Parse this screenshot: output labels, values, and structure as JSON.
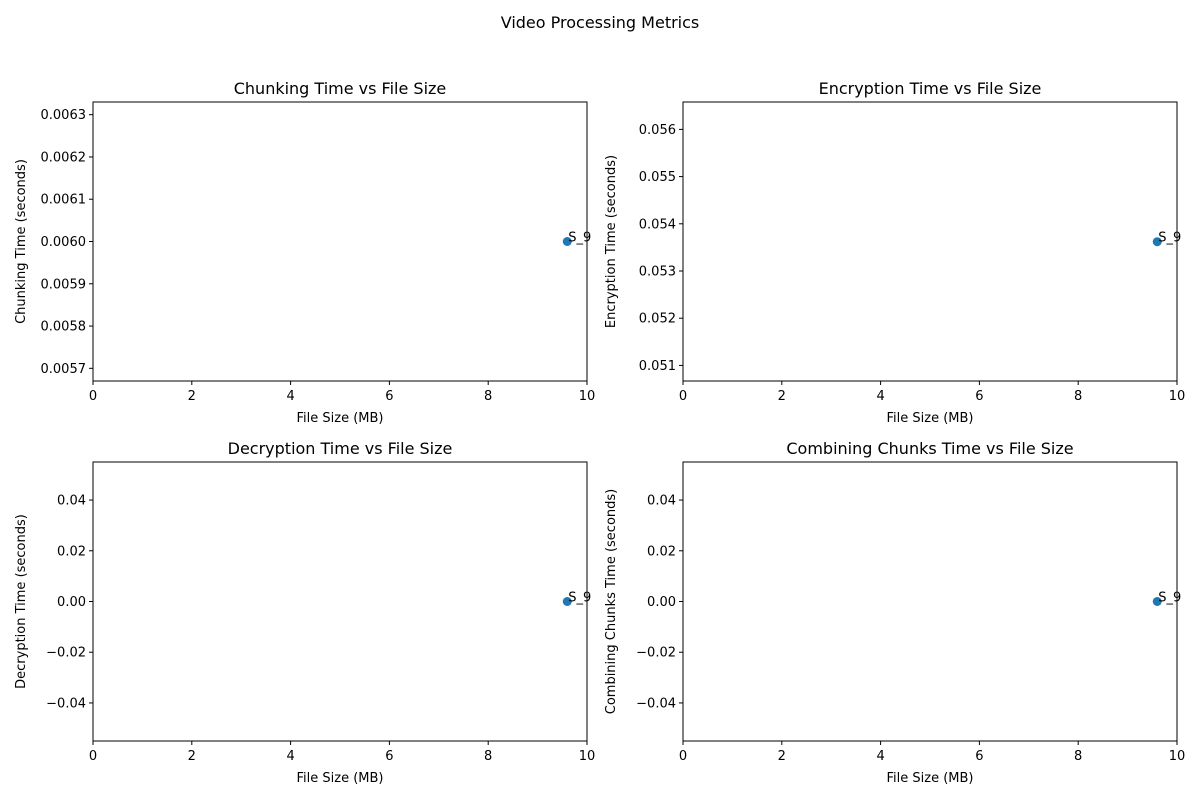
{
  "figure": {
    "title": "Video Processing Metrics",
    "point_color": "#1f77b4"
  },
  "chart_data": [
    {
      "type": "scatter",
      "title": "Chunking Time vs File Size",
      "xlabel": "File Size (MB)",
      "ylabel": "Chunking Time (seconds)",
      "xlim": [
        0,
        10
      ],
      "ylim": [
        0.00567,
        0.00633
      ],
      "xticks": [
        0,
        2,
        4,
        6,
        8,
        10
      ],
      "xtick_labels": [
        "0",
        "2",
        "4",
        "6",
        "8",
        "10"
      ],
      "yticks": [
        0.0057,
        0.0058,
        0.0059,
        0.006,
        0.0061,
        0.0062,
        0.0063
      ],
      "ytick_labels": [
        "0.0057",
        "0.0058",
        "0.0059",
        "0.0060",
        "0.0061",
        "0.0062",
        "0.0063"
      ],
      "grid": false,
      "points": [
        {
          "x": 9.6,
          "y": 0.006,
          "label": "S_9"
        }
      ]
    },
    {
      "type": "scatter",
      "title": "Encryption Time vs File Size",
      "xlabel": "File Size (MB)",
      "ylabel": "Encryption Time (seconds)",
      "xlim": [
        0,
        10
      ],
      "ylim": [
        0.05067,
        0.05658
      ],
      "xticks": [
        0,
        2,
        4,
        6,
        8,
        10
      ],
      "xtick_labels": [
        "0",
        "2",
        "4",
        "6",
        "8",
        "10"
      ],
      "yticks": [
        0.051,
        0.052,
        0.053,
        0.054,
        0.055,
        0.056
      ],
      "ytick_labels": [
        "0.051",
        "0.052",
        "0.053",
        "0.054",
        "0.055",
        "0.056"
      ],
      "grid": false,
      "points": [
        {
          "x": 9.6,
          "y": 0.05362,
          "label": "S_9"
        }
      ]
    },
    {
      "type": "scatter",
      "title": "Decryption Time vs File Size",
      "xlabel": "File Size (MB)",
      "ylabel": "Decryption Time (seconds)",
      "xlim": [
        0,
        10
      ],
      "ylim": [
        -0.055,
        0.055
      ],
      "xticks": [
        0,
        2,
        4,
        6,
        8,
        10
      ],
      "xtick_labels": [
        "0",
        "2",
        "4",
        "6",
        "8",
        "10"
      ],
      "yticks": [
        -0.04,
        -0.02,
        0,
        0.02,
        0.04
      ],
      "ytick_labels": [
        "−0.04",
        "−0.02",
        "0.00",
        "0.02",
        "0.04"
      ],
      "grid": false,
      "points": [
        {
          "x": 9.6,
          "y": 0,
          "label": "S_9"
        }
      ]
    },
    {
      "type": "scatter",
      "title": "Combining Chunks Time vs File Size",
      "xlabel": "File Size (MB)",
      "ylabel": "Combining Chunks Time (seconds)",
      "xlim": [
        0,
        10
      ],
      "ylim": [
        -0.055,
        0.055
      ],
      "xticks": [
        0,
        2,
        4,
        6,
        8,
        10
      ],
      "xtick_labels": [
        "0",
        "2",
        "4",
        "6",
        "8",
        "10"
      ],
      "yticks": [
        -0.04,
        -0.02,
        0,
        0.02,
        0.04
      ],
      "ytick_labels": [
        "−0.04",
        "−0.02",
        "0.00",
        "0.02",
        "0.04"
      ],
      "grid": false,
      "points": [
        {
          "x": 9.6,
          "y": 0,
          "label": "S_9"
        }
      ]
    }
  ]
}
